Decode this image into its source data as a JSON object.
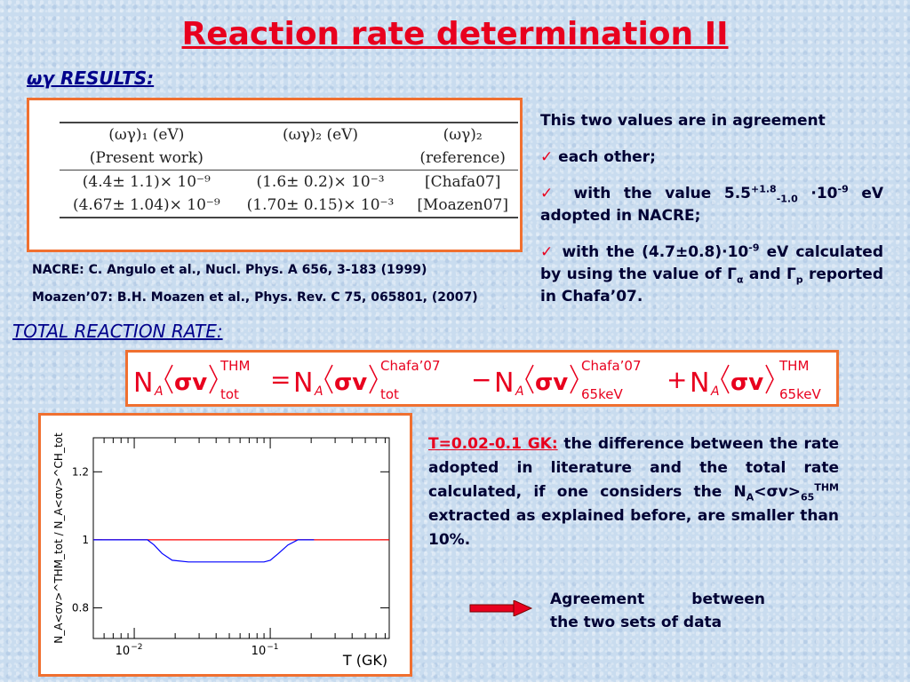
{
  "title": "Reaction rate determination II",
  "wy_results_heading": "ωγ RESULTS:",
  "results_table": {
    "headers_row1": [
      "(ωγ)₁ (eV)",
      "(ωγ)₂ (eV)",
      "(ωγ)₂"
    ],
    "headers_row2": [
      "(Present work)",
      "",
      "(reference)"
    ],
    "rows": [
      [
        "(4.4± 1.1)× 10⁻⁹",
        "(1.6± 0.2)× 10⁻³",
        "[Chafa07]"
      ],
      [
        "(4.67± 1.04)× 10⁻⁹",
        "(1.70± 0.15)× 10⁻³",
        "[Moazen07]"
      ]
    ]
  },
  "references": {
    "nacre": "NACRE: C. Angulo et al., Nucl. Phys. A 656, 3-183 (1999)",
    "moazen": "Moazen’07: B.H. Moazen et al., Phys. Rev. C 75, 065801, (2007)"
  },
  "agreement_text": {
    "intro": "This two values are in agreement",
    "item1": "each other;",
    "item2_a": "with the value 5.5",
    "item2_sup": "+1.8",
    "item2_sub": "-1.0",
    "item2_b": "·10",
    "item2_exp": "-9",
    "item2_c": "eV adopted in NACRE;",
    "item3_a": "with the (4.7±0.8)·10",
    "item3_exp": "-9",
    "item3_b": "eV calculated by using the value of Γ",
    "item3_sub1": "α",
    "item3_c": "and Γ",
    "item3_sub2": "p",
    "item3_d": "reported in Chafa’07.",
    "check_glyph": "✓"
  },
  "total_rate_heading": "TOTAL REACTION RATE:",
  "formula": {
    "N": "N",
    "A": "A",
    "sigmav": "σv",
    "thm": "THM",
    "chafa": "Chafa’07",
    "tot": "tot",
    "kev65": "65keV",
    "eq": "=",
    "minus": "−",
    "plus": "+"
  },
  "chart_data": {
    "type": "line",
    "xlabel": "T (GK)",
    "ylabel": "N_A<σv>^THM_tot / N_A<σv>^CH_tot",
    "x_scale": "log",
    "xlim": [
      0.005,
      0.75
    ],
    "ylim": [
      0.71,
      1.3
    ],
    "x_ticks": [
      {
        "value": 0.01,
        "base": "10",
        "exp": "−2"
      },
      {
        "value": 0.1,
        "base": "10",
        "exp": "−1"
      }
    ],
    "y_ticks": [
      0.8,
      1,
      1.2
    ],
    "series": [
      {
        "color": "#ff0000",
        "x": [
          0.005,
          0.75
        ],
        "y": [
          1.0,
          1.0
        ]
      },
      {
        "color": "#0000ff",
        "x": [
          0.005,
          0.0125,
          0.014,
          0.016,
          0.019,
          0.025,
          0.035,
          0.05,
          0.075,
          0.09,
          0.1,
          0.115,
          0.135,
          0.16,
          0.21
        ],
        "y": [
          1.0,
          1.0,
          0.985,
          0.96,
          0.94,
          0.935,
          0.935,
          0.935,
          0.935,
          0.935,
          0.94,
          0.96,
          0.985,
          1.0,
          1.0
        ]
      }
    ]
  },
  "temperature_note": {
    "range": "T=0.02-0.1 GK:",
    "text_a": "the difference between the rate adopted in literature and the total rate calculated, if one considers the N",
    "sub_a": "A",
    "text_b": "<σv>",
    "sub_65": "65",
    "sup_thm": "THM",
    "text_c": "extracted as explained before, are smaller than 10%."
  },
  "conclusion": {
    "line1": "Agreement between",
    "line2": "the two sets of data",
    "arrow_color": "#e8001e"
  }
}
